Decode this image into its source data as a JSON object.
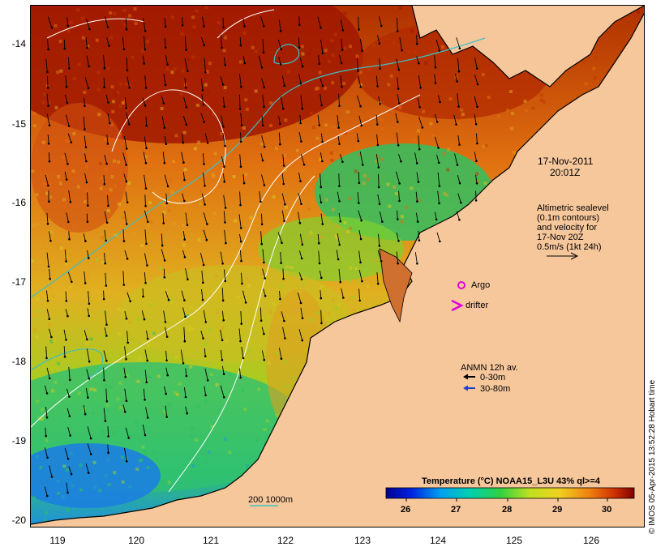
{
  "map": {
    "date_label": "17-Nov-2011",
    "time_label": "20:01Z",
    "altimetry_text": [
      "Altimetric sealevel",
      "(0.1m contours)",
      "and velocity for",
      "17-Nov 20Z",
      "0.5m/s (1kt 24h)"
    ],
    "argo_label": "Argo",
    "drifter_label": "drifter",
    "anmn_title": "ANMN 12h av.",
    "anmn_items": [
      {
        "label": "0-30m",
        "color": "#000000"
      },
      {
        "label": "30-80m",
        "color": "#1f3fd0"
      }
    ],
    "depth_legend_label": "200  1000m",
    "colorbar_title": "Temperature (°C) NOAA15_L3U 43% ql>=4",
    "colorbar_ticks": [
      "26",
      "27",
      "28",
      "29",
      "30"
    ],
    "credit": "© IMOS 05-Apr-2015 13:52:28 Hobart time",
    "lat_ticks": [
      "-14",
      "-15",
      "-16",
      "-17",
      "-18",
      "-19",
      "-20"
    ],
    "lon_ticks": [
      "119",
      "120",
      "121",
      "122",
      "123",
      "124",
      "125",
      "126"
    ],
    "colors": {
      "land": "#f7c79c",
      "argo": "#e000e0",
      "drifter": "#e000e0",
      "contour_200": "#40c0c0",
      "contour_1000": "#ffffff"
    }
  }
}
